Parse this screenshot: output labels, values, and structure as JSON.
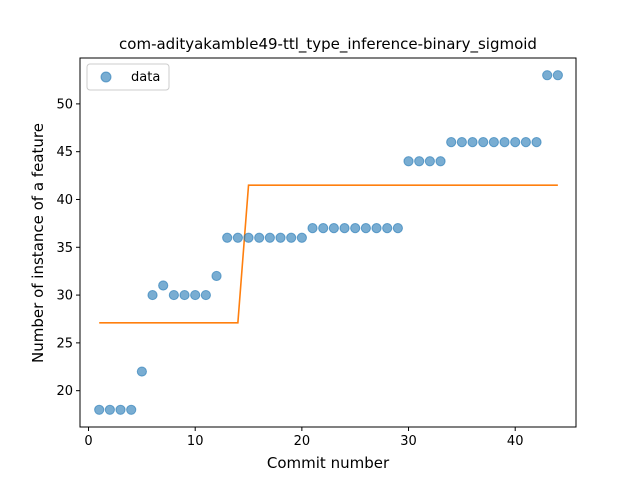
{
  "chart_data": {
    "type": "scatter",
    "title": "com-adityakamble49-ttl_type_inference-binary_sigmoid",
    "xlabel": "Commit number",
    "ylabel": "Number of instance of a feature",
    "xlim": [
      -0.8,
      45.7
    ],
    "ylim": [
      16.2,
      54.8
    ],
    "xticks": [
      0,
      10,
      20,
      30,
      40
    ],
    "yticks": [
      20,
      25,
      30,
      35,
      40,
      45,
      50
    ],
    "grid": false,
    "legend": {
      "position": "top-left",
      "entries": [
        "data"
      ]
    },
    "colors": {
      "data": "#1f77b4",
      "fit": "#ff7f0e"
    },
    "series": [
      {
        "name": "data",
        "kind": "scatter",
        "x": [
          1,
          2,
          3,
          4,
          5,
          6,
          7,
          8,
          9,
          10,
          11,
          12,
          13,
          14,
          15,
          16,
          17,
          18,
          19,
          20,
          21,
          22,
          23,
          24,
          25,
          26,
          27,
          28,
          29,
          30,
          31,
          32,
          33,
          34,
          35,
          36,
          37,
          38,
          39,
          40,
          41,
          42,
          43,
          44
        ],
        "y": [
          18,
          18,
          18,
          18,
          22,
          30,
          31,
          30,
          30,
          30,
          30,
          32,
          36,
          36,
          36,
          36,
          36,
          36,
          36,
          36,
          37,
          37,
          37,
          37,
          37,
          37,
          37,
          37,
          37,
          44,
          44,
          44,
          44,
          46,
          46,
          46,
          46,
          46,
          46,
          46,
          46,
          46,
          53,
          53
        ]
      },
      {
        "kind": "line",
        "x": [
          1,
          2,
          3,
          4,
          5,
          6,
          7,
          8,
          9,
          10,
          11,
          12,
          13,
          14,
          15,
          16,
          17,
          18,
          19,
          20,
          21,
          22,
          23,
          24,
          25,
          26,
          27,
          28,
          29,
          30,
          31,
          32,
          33,
          34,
          35,
          36,
          37,
          38,
          39,
          40,
          41,
          42,
          43,
          44
        ],
        "y": [
          27.1,
          27.1,
          27.1,
          27.1,
          27.1,
          27.1,
          27.1,
          27.1,
          27.1,
          27.1,
          27.1,
          27.1,
          27.1,
          27.1,
          41.5,
          41.5,
          41.5,
          41.5,
          41.5,
          41.5,
          41.5,
          41.5,
          41.5,
          41.5,
          41.5,
          41.5,
          41.5,
          41.5,
          41.5,
          41.5,
          41.5,
          41.5,
          41.5,
          41.5,
          41.5,
          41.5,
          41.5,
          41.5,
          41.5,
          41.5,
          41.5,
          41.5,
          41.5,
          41.5
        ]
      }
    ]
  }
}
